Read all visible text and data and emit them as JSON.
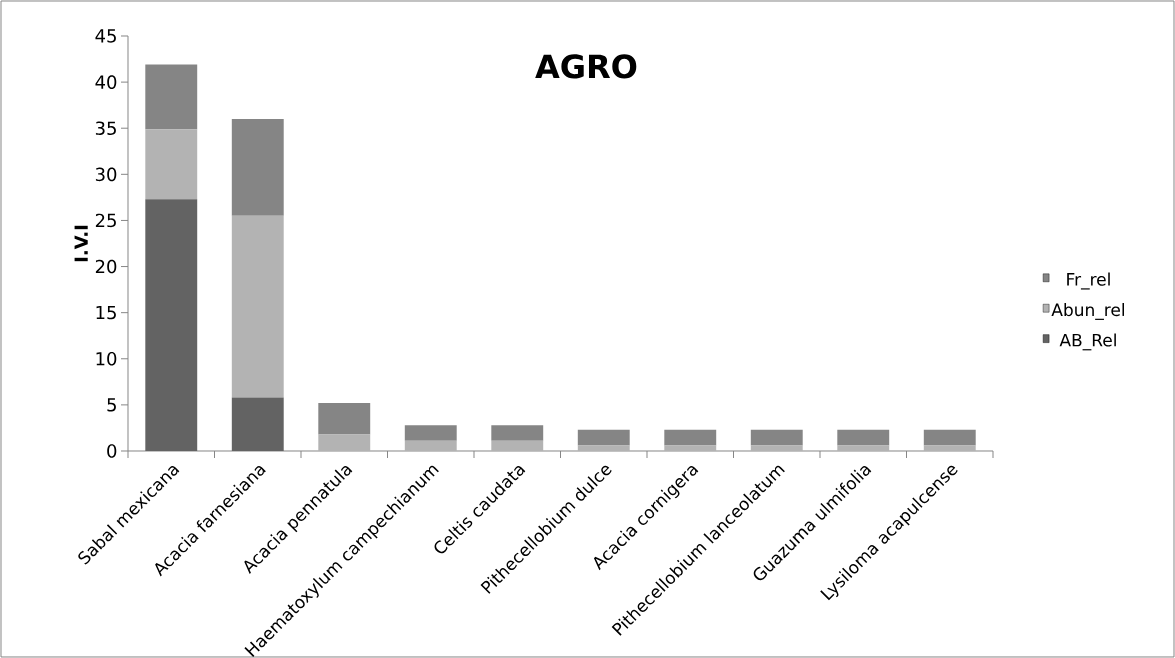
{
  "chart_data": {
    "type": "bar",
    "title": "AGRO",
    "ylabel": "I.V.I",
    "stacked": true,
    "legend": "right",
    "grid": false,
    "categories": [
      "Sabal mexicana",
      "Acacia farnesiana",
      "Acacia pennatula",
      "Haematoxylum campechianum",
      "Celtis caudata",
      "Pithecellobium dulce",
      "Acacia cornigera",
      "Pithecellobium lanceolatum",
      "Guazuma ulmifolia",
      "Lysiloma acapulcense"
    ],
    "ylim": [
      0,
      45
    ],
    "yticks": [
      0,
      5,
      10,
      15,
      20,
      25,
      30,
      35,
      40,
      45
    ],
    "series": [
      {
        "name": "AB_Rel",
        "color": "#636363",
        "values": [
          27.3,
          5.8,
          0,
          0,
          0,
          0,
          0,
          0,
          0,
          0
        ]
      },
      {
        "name": "Abun_rel",
        "color": "#b3b3b3",
        "values": [
          7.6,
          19.7,
          1.8,
          1.1,
          1.1,
          0.6,
          0.6,
          0.6,
          0.6,
          0.6
        ]
      },
      {
        "name": "Fr_rel",
        "color": "#858585",
        "values": [
          7.0,
          10.5,
          3.4,
          1.7,
          1.7,
          1.7,
          1.7,
          1.7,
          1.7,
          1.7
        ]
      }
    ]
  }
}
